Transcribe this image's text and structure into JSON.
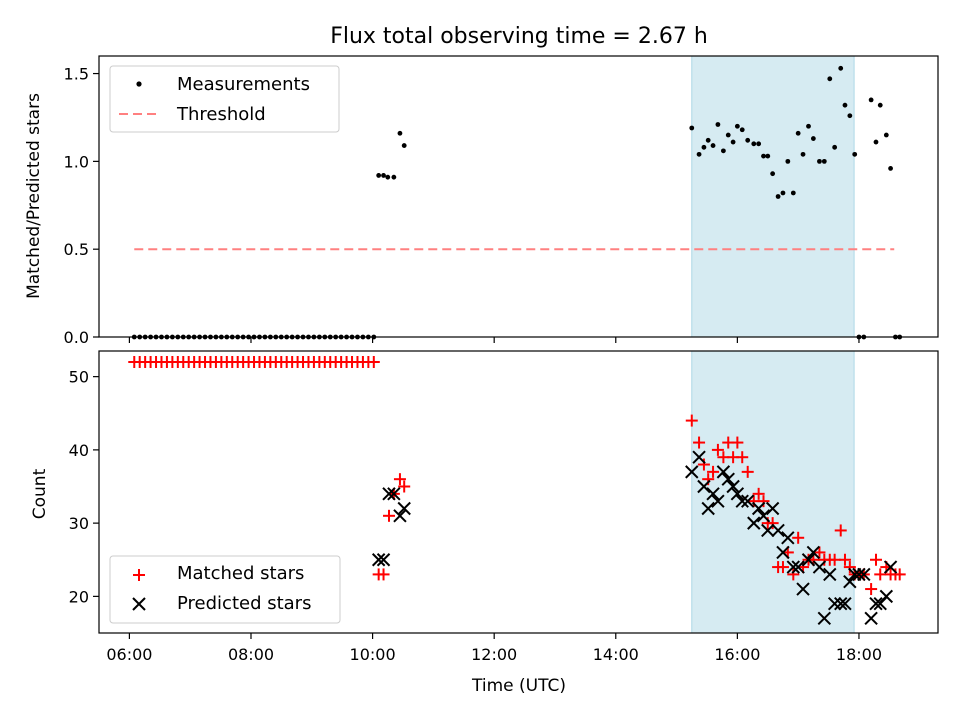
{
  "chart_data": {
    "title": "Flux total observing time = 2.67 h",
    "xlabel": "Time (UTC)",
    "x_unit": "hours UTC",
    "xlim": [
      5.5,
      19.3
    ],
    "xtick_values": [
      6,
      8,
      10,
      12,
      14,
      16,
      18
    ],
    "xtick_labels": [
      "06:00",
      "08:00",
      "10:00",
      "12:00",
      "14:00",
      "16:00",
      "18:00"
    ],
    "colors": {
      "measurements": "#000000",
      "threshold": "#ff8080",
      "highlight": "#add8e6",
      "matched": "#ff0000",
      "predicted": "#000000"
    },
    "highlight_span_x": [
      15.25,
      17.92
    ],
    "panels": [
      {
        "type": "scatter",
        "ylabel": "Matched/Predicted stars",
        "ylim": [
          0,
          1.6
        ],
        "yticks": [
          0.0,
          0.5,
          1.0,
          1.5
        ],
        "ytick_labels": [
          "0.0",
          "0.5",
          "1.0",
          "1.5"
        ],
        "legend": {
          "placement": "upper-left",
          "entries": [
            "Measurements",
            "Threshold"
          ]
        },
        "threshold": {
          "y": 0.5,
          "x_range": [
            6.08,
            18.58
          ]
        },
        "zero_run": {
          "x_start": 6.08,
          "x_end": 10.02,
          "count": 45,
          "y": 0
        },
        "series": [
          {
            "name": "Measurements",
            "x": [
              10.1,
              10.18,
              10.25,
              10.35,
              10.45,
              10.52,
              15.25,
              15.37,
              15.45,
              15.52,
              15.6,
              15.68,
              15.77,
              15.85,
              15.93,
              16.0,
              16.08,
              16.17,
              16.27,
              16.35,
              16.43,
              16.5,
              16.58,
              16.67,
              16.75,
              16.83,
              16.92,
              17.0,
              17.08,
              17.17,
              17.25,
              17.35,
              17.43,
              17.52,
              17.6,
              17.7,
              17.77,
              17.85,
              17.93,
              18.0,
              18.08,
              18.2,
              18.28,
              18.35,
              18.45,
              18.52,
              18.6,
              18.67
            ],
            "y": [
              0.92,
              0.92,
              0.91,
              0.91,
              1.16,
              1.09,
              1.19,
              1.04,
              1.08,
              1.12,
              1.09,
              1.21,
              1.06,
              1.15,
              1.11,
              1.2,
              1.18,
              1.12,
              1.1,
              1.1,
              1.03,
              1.03,
              0.93,
              0.8,
              0.82,
              1.0,
              0.82,
              1.16,
              1.04,
              1.2,
              1.13,
              1.0,
              1.0,
              1.47,
              1.08,
              1.53,
              1.32,
              1.26,
              1.04,
              0.0,
              0.0,
              1.35,
              1.11,
              1.32,
              1.15,
              0.96,
              0.0,
              0.0
            ]
          }
        ]
      },
      {
        "type": "scatter",
        "ylabel": "Count",
        "ylim": [
          15,
          53.5
        ],
        "yticks": [
          20,
          30,
          40,
          50
        ],
        "ytick_labels": [
          "20",
          "30",
          "40",
          "50"
        ],
        "legend": {
          "placement": "lower-left",
          "entries": [
            "Matched stars",
            "Predicted stars"
          ]
        },
        "matched_run": {
          "x_start": 6.08,
          "x_end": 10.02,
          "count": 45,
          "y": 52
        },
        "series": [
          {
            "name": "Matched stars",
            "marker": "+",
            "x": [
              10.1,
              10.18,
              10.27,
              10.35,
              10.45,
              10.52,
              15.25,
              15.37,
              15.45,
              15.52,
              15.6,
              15.68,
              15.77,
              15.85,
              15.93,
              16.0,
              16.08,
              16.17,
              16.27,
              16.35,
              16.43,
              16.5,
              16.58,
              16.67,
              16.75,
              16.83,
              16.92,
              17.0,
              17.08,
              17.17,
              17.25,
              17.35,
              17.43,
              17.52,
              17.6,
              17.7,
              17.77,
              17.85,
              17.93,
              18.0,
              18.08,
              18.2,
              18.28,
              18.35,
              18.45,
              18.52,
              18.6,
              18.67
            ],
            "y": [
              23,
              23,
              31,
              34,
              36,
              35,
              44,
              41,
              38,
              36,
              37,
              40,
              39,
              41,
              39,
              41,
              39,
              37,
              33,
              34,
              33,
              30,
              30,
              24,
              24,
              26,
              23,
              28,
              24,
              25,
              25,
              26,
              25,
              25,
              25,
              29,
              25,
              24,
              23,
              23,
              23,
              21,
              25,
              23,
              24,
              23,
              23,
              23
            ]
          },
          {
            "name": "Predicted stars",
            "marker": "x",
            "x": [
              10.1,
              10.18,
              10.27,
              10.35,
              10.45,
              10.52,
              15.25,
              15.37,
              15.45,
              15.52,
              15.6,
              15.68,
              15.77,
              15.85,
              15.93,
              16.0,
              16.08,
              16.17,
              16.27,
              16.35,
              16.43,
              16.5,
              16.58,
              16.67,
              16.75,
              16.83,
              16.92,
              17.0,
              17.08,
              17.17,
              17.25,
              17.35,
              17.43,
              17.52,
              17.6,
              17.7,
              17.77,
              17.85,
              17.93,
              18.0,
              18.08,
              18.2,
              18.28,
              18.35,
              18.45,
              18.52
            ],
            "y": [
              25,
              25,
              34,
              34,
              31,
              32,
              37,
              39,
              35,
              32,
              34,
              33,
              37,
              36,
              35,
              34,
              33,
              33,
              30,
              32,
              31,
              29,
              32,
              29,
              26,
              28,
              24,
              24,
              21,
              25,
              26,
              24,
              17,
              23,
              19,
              19,
              19,
              22,
              23,
              23,
              23,
              17,
              19,
              19,
              20,
              24
            ]
          }
        ]
      }
    ]
  }
}
